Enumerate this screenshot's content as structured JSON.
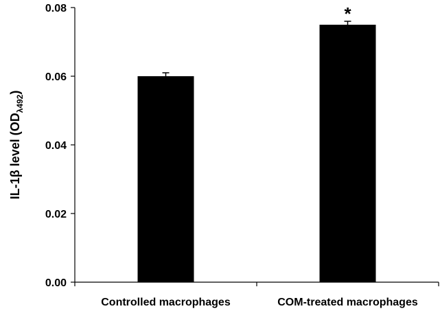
{
  "chart_data": {
    "type": "bar",
    "categories": [
      "Controlled macrophages",
      "COM-treated macrophages"
    ],
    "values": [
      0.06,
      0.075
    ],
    "errors": [
      0.001,
      0.001
    ],
    "annotations": [
      "",
      "*"
    ],
    "ylabel": {
      "main": "IL-1β level (OD",
      "sub": "λ492",
      "close": ")"
    },
    "ylim": [
      0,
      0.08
    ],
    "yticks": [
      "0.00",
      "0.02",
      "0.04",
      "0.06",
      "0.08"
    ],
    "bar_color": "#000000",
    "grid": false,
    "legend": "none"
  }
}
